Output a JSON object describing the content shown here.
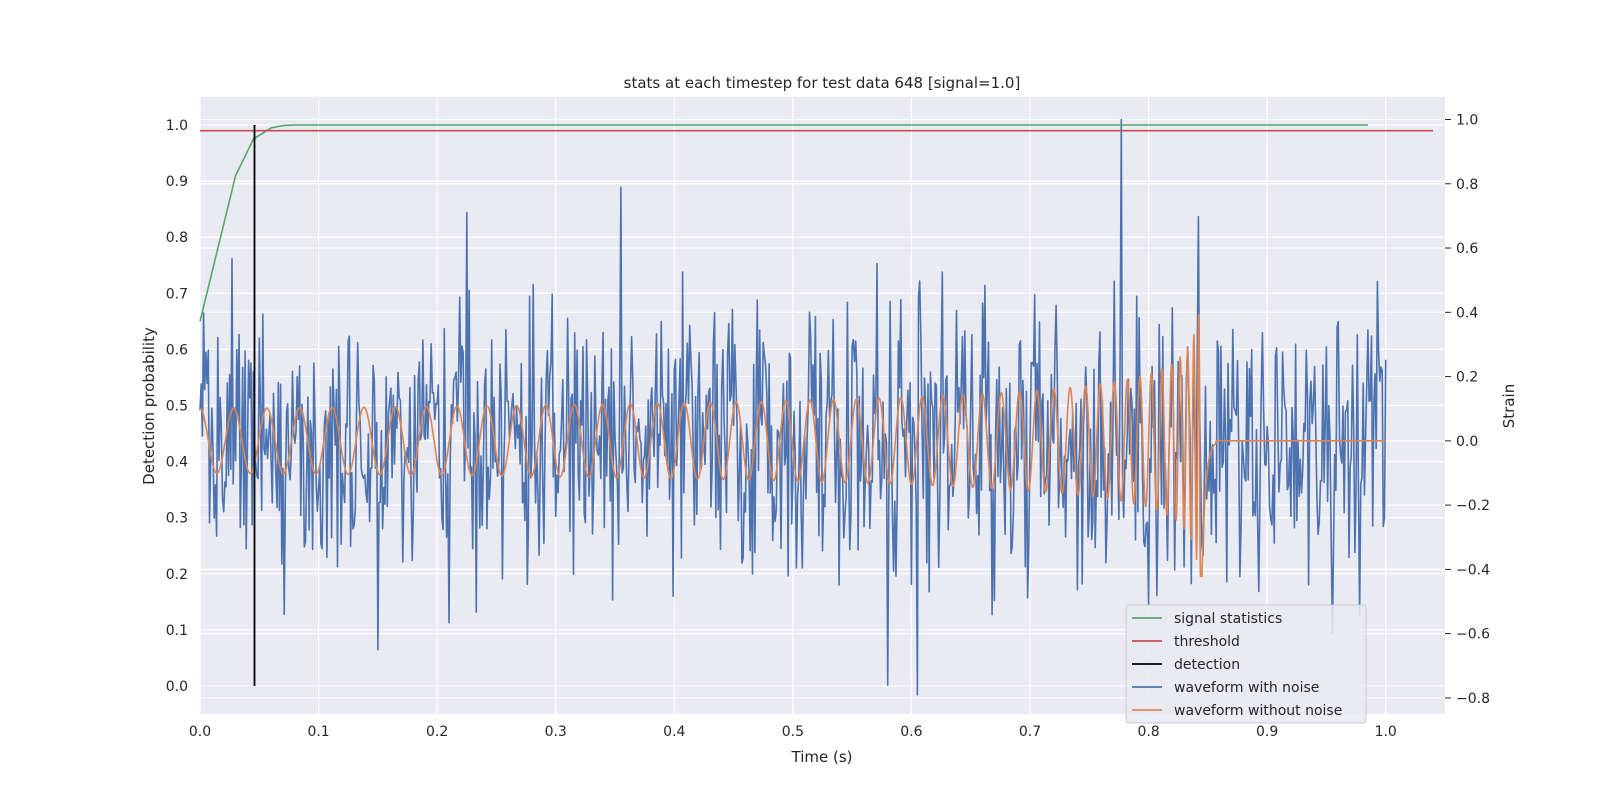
{
  "chart_data": {
    "type": "line",
    "title": "stats at each timestep for test data 648 [signal=1.0]",
    "xlabel": "Time (s)",
    "ylabel_left": "Detection probability",
    "ylabel_right": "Strain",
    "xlim": [
      0.0,
      1.05
    ],
    "ylim_left": [
      -0.05,
      1.05
    ],
    "ylim_right": [
      -0.85,
      1.07
    ],
    "x_ticks": [
      "0.0",
      "0.1",
      "0.2",
      "0.3",
      "0.4",
      "0.5",
      "0.6",
      "0.7",
      "0.8",
      "0.9",
      "1.0"
    ],
    "x_tick_values": [
      0.0,
      0.1,
      0.2,
      0.3,
      0.4,
      0.5,
      0.6,
      0.7,
      0.8,
      0.9,
      1.0
    ],
    "y_left_ticks": [
      "0.0",
      "0.1",
      "0.2",
      "0.3",
      "0.4",
      "0.5",
      "0.6",
      "0.7",
      "0.8",
      "0.9",
      "1.0"
    ],
    "y_left_tick_values": [
      0.0,
      0.1,
      0.2,
      0.3,
      0.4,
      0.5,
      0.6,
      0.7,
      0.8,
      0.9,
      1.0
    ],
    "y_right_ticks": [
      "−0.8",
      "−0.6",
      "−0.4",
      "−0.2",
      "0.0",
      "0.2",
      "0.4",
      "0.6",
      "0.8",
      "1.0"
    ],
    "y_right_tick_values": [
      -0.8,
      -0.6,
      -0.4,
      -0.2,
      0.0,
      0.2,
      0.4,
      0.6,
      0.8,
      1.0
    ],
    "grid": true,
    "legend_position": "bottom-right",
    "colors": {
      "background": "#eaeaf2",
      "grid": "#ffffff",
      "signal_statistics": "#55a868",
      "threshold": "#c44e52",
      "detection": "#000000",
      "waveform_with_noise": "#4c72b0",
      "waveform_without_noise": "#dd8452"
    },
    "series": [
      {
        "name": "signal statistics",
        "axis": "left",
        "x": [
          0.0,
          0.015,
          0.03,
          0.045,
          0.06,
          0.07,
          0.08,
          0.1,
          0.2,
          0.4,
          0.6,
          0.8,
          0.985
        ],
        "y": [
          0.65,
          0.78,
          0.91,
          0.975,
          0.995,
          0.999,
          1.0,
          1.0,
          1.0,
          1.0,
          1.0,
          1.0,
          1.0
        ]
      },
      {
        "name": "threshold",
        "axis": "left",
        "x": [
          0.0,
          1.04
        ],
        "y": [
          0.99,
          0.99
        ]
      },
      {
        "name": "detection",
        "axis": "left",
        "x": [
          0.046,
          0.046
        ],
        "y": [
          0.0,
          1.0
        ]
      },
      {
        "name": "waveform with noise",
        "axis": "right",
        "noise_std": 0.2,
        "x_range": [
          0.0,
          1.0
        ],
        "notable_points": [
          {
            "x": 0.777,
            "y": 1.0
          },
          {
            "x": 0.605,
            "y": -0.79
          },
          {
            "x": 0.58,
            "y": -0.76
          },
          {
            "x": 0.355,
            "y": 0.79
          },
          {
            "x": 0.225,
            "y": 0.71
          },
          {
            "x": 0.15,
            "y": -0.65
          },
          {
            "x": 0.955,
            "y": -0.6
          }
        ]
      },
      {
        "name": "waveform without noise",
        "axis": "right",
        "x_range": [
          0.0,
          1.0
        ],
        "merger_time": 0.845,
        "early_amplitude": 0.1,
        "peak_amplitude": 0.52,
        "post_merger_value": 0.0
      }
    ]
  },
  "legend": {
    "items": [
      {
        "label": "signal statistics",
        "color": "#55a868"
      },
      {
        "label": "threshold",
        "color": "#c44e52"
      },
      {
        "label": "detection",
        "color": "#000000"
      },
      {
        "label": "waveform with noise",
        "color": "#4c72b0"
      },
      {
        "label": "waveform without noise",
        "color": "#dd8452"
      }
    ]
  }
}
